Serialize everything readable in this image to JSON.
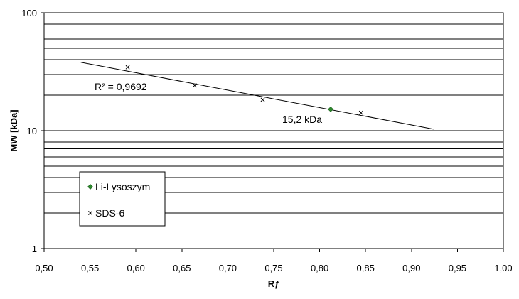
{
  "chart_data": {
    "type": "scatter",
    "xlabel": "Rƒ",
    "ylabel": "MW [kDa]",
    "xlim": [
      0.5,
      1.0
    ],
    "ylim": [
      1,
      100
    ],
    "y_scale": "log",
    "x_ticks": [
      "0,50",
      "0,55",
      "0,60",
      "0,65",
      "0,70",
      "0,75",
      "0,80",
      "0,85",
      "0,90",
      "0,95",
      "1,00"
    ],
    "y_ticks": [
      {
        "value": 1,
        "label": "1"
      },
      {
        "value": 10,
        "label": "10"
      },
      {
        "value": 100,
        "label": "100"
      }
    ],
    "grid": "horizontal",
    "series": [
      {
        "name": "Li-Lysoszym",
        "marker": "diamond",
        "color": "#2e8b2e",
        "points": [
          {
            "x": 0.812,
            "y": 15.2
          }
        ]
      },
      {
        "name": "SDS-6",
        "marker": "x",
        "color": "#000000",
        "points": [
          {
            "x": 0.591,
            "y": 34.5
          },
          {
            "x": 0.664,
            "y": 24.2
          },
          {
            "x": 0.738,
            "y": 18.3
          },
          {
            "x": 0.845,
            "y": 14.2
          }
        ]
      }
    ],
    "trendline": {
      "x": [
        0.54,
        0.924
      ],
      "y": [
        38.0,
        10.3
      ]
    },
    "annotations": {
      "r_squared": "R² = 0,9692",
      "value_label": "15,2 kDa"
    },
    "legend_position": "bottom-left"
  }
}
